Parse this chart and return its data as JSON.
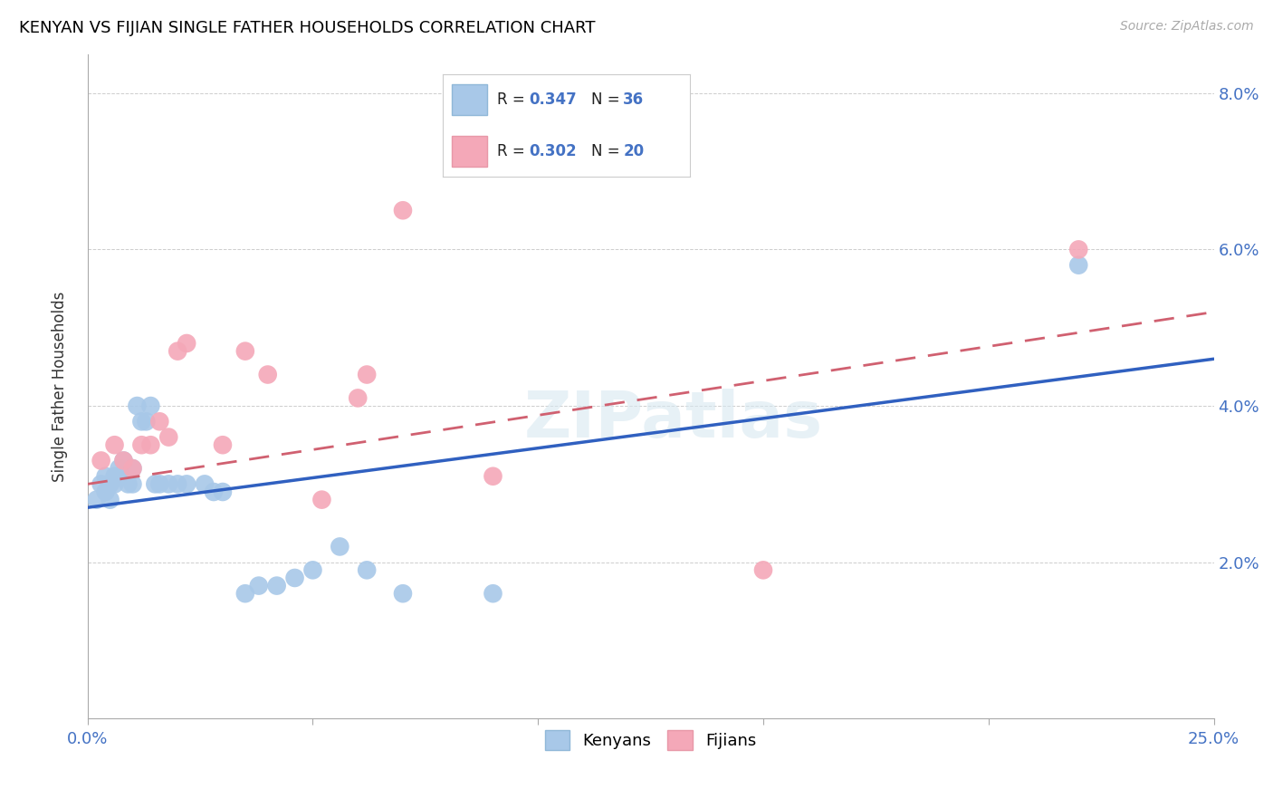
{
  "title": "KENYAN VS FIJIAN SINGLE FATHER HOUSEHOLDS CORRELATION CHART",
  "source": "Source: ZipAtlas.com",
  "ylabel": "Single Father Households",
  "xlim": [
    0.0,
    0.25
  ],
  "ylim": [
    0.0,
    0.085
  ],
  "xtick_vals": [
    0.0,
    0.05,
    0.1,
    0.15,
    0.2,
    0.25
  ],
  "xtick_minor": [
    0.025,
    0.075,
    0.125,
    0.175,
    0.225
  ],
  "xticklabel_left": "0.0%",
  "xticklabel_right": "25.0%",
  "yticks": [
    0.02,
    0.04,
    0.06,
    0.08
  ],
  "yticklabels_right": [
    "2.0%",
    "4.0%",
    "6.0%",
    "8.0%"
  ],
  "background_color": "#ffffff",
  "watermark": "ZIPatlas",
  "kenyan_color": "#a8c8e8",
  "fijian_color": "#f4a8b8",
  "kenyan_line_color": "#3060c0",
  "fijian_line_color": "#d06070",
  "kenyan_x": [
    0.002,
    0.003,
    0.004,
    0.004,
    0.005,
    0.005,
    0.006,
    0.006,
    0.007,
    0.007,
    0.008,
    0.009,
    0.01,
    0.01,
    0.011,
    0.012,
    0.013,
    0.014,
    0.015,
    0.016,
    0.018,
    0.02,
    0.022,
    0.026,
    0.028,
    0.03,
    0.035,
    0.038,
    0.042,
    0.046,
    0.05,
    0.056,
    0.062,
    0.07,
    0.09,
    0.22
  ],
  "kenyan_y": [
    0.028,
    0.03,
    0.029,
    0.031,
    0.03,
    0.028,
    0.03,
    0.031,
    0.031,
    0.032,
    0.033,
    0.03,
    0.032,
    0.03,
    0.04,
    0.038,
    0.038,
    0.04,
    0.03,
    0.03,
    0.03,
    0.03,
    0.03,
    0.03,
    0.029,
    0.029,
    0.016,
    0.017,
    0.017,
    0.018,
    0.019,
    0.022,
    0.019,
    0.016,
    0.016,
    0.058
  ],
  "fijian_x": [
    0.003,
    0.006,
    0.008,
    0.01,
    0.012,
    0.014,
    0.016,
    0.018,
    0.02,
    0.022,
    0.03,
    0.035,
    0.04,
    0.052,
    0.06,
    0.062,
    0.07,
    0.09,
    0.15,
    0.22
  ],
  "fijian_y": [
    0.033,
    0.035,
    0.033,
    0.032,
    0.035,
    0.035,
    0.038,
    0.036,
    0.047,
    0.048,
    0.035,
    0.047,
    0.044,
    0.028,
    0.041,
    0.044,
    0.065,
    0.031,
    0.019,
    0.06
  ],
  "kenyan_line_x0": 0.0,
  "kenyan_line_y0": 0.027,
  "kenyan_line_x1": 0.25,
  "kenyan_line_y1": 0.046,
  "fijian_line_x0": 0.0,
  "fijian_line_y0": 0.03,
  "fijian_line_x1": 0.25,
  "fijian_line_y1": 0.052
}
